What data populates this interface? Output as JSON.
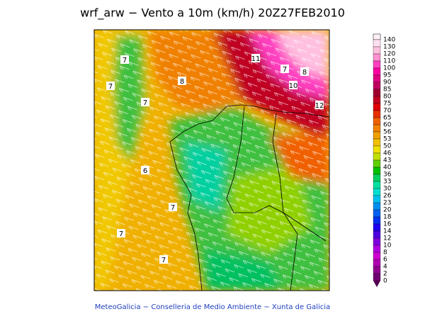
{
  "title": "wrf_arw − Vento a 10m (km/h) 20Z27FEB2010",
  "footer": "MeteoGalicia − Conselleria de Medio Ambiente − Xunta de Galicia",
  "contour_labels": [
    "7",
    "7",
    "8",
    "7",
    "11",
    "7",
    "8",
    "10",
    "12",
    "6",
    "7",
    "7",
    "7"
  ],
  "colorbar": {
    "labels": [
      140,
      130,
      120,
      110,
      100,
      95,
      90,
      85,
      80,
      75,
      70,
      65,
      60,
      56,
      53,
      50,
      46,
      43,
      40,
      36,
      33,
      30,
      26,
      23,
      20,
      18,
      16,
      14,
      12,
      10,
      8,
      6,
      4,
      2,
      0
    ],
    "colors": [
      "#ffe0f0",
      "#ffc0e0",
      "#ff90d0",
      "#ff40c0",
      "#ff00a0",
      "#e00080",
      "#c00060",
      "#a00030",
      "#c00020",
      "#e00000",
      "#e83000",
      "#f06000",
      "#f08000",
      "#f0a000",
      "#f0c000",
      "#f0e000",
      "#c0e000",
      "#60d000",
      "#00c000",
      "#00d060",
      "#00e0a0",
      "#00e0d0",
      "#00c0f0",
      "#0090f0",
      "#0060f0",
      "#0030f0",
      "#2000f0",
      "#5000e0",
      "#8000e0",
      "#b000e0",
      "#d000d0",
      "#b000b0",
      "#900090",
      "#700070"
    ]
  }
}
